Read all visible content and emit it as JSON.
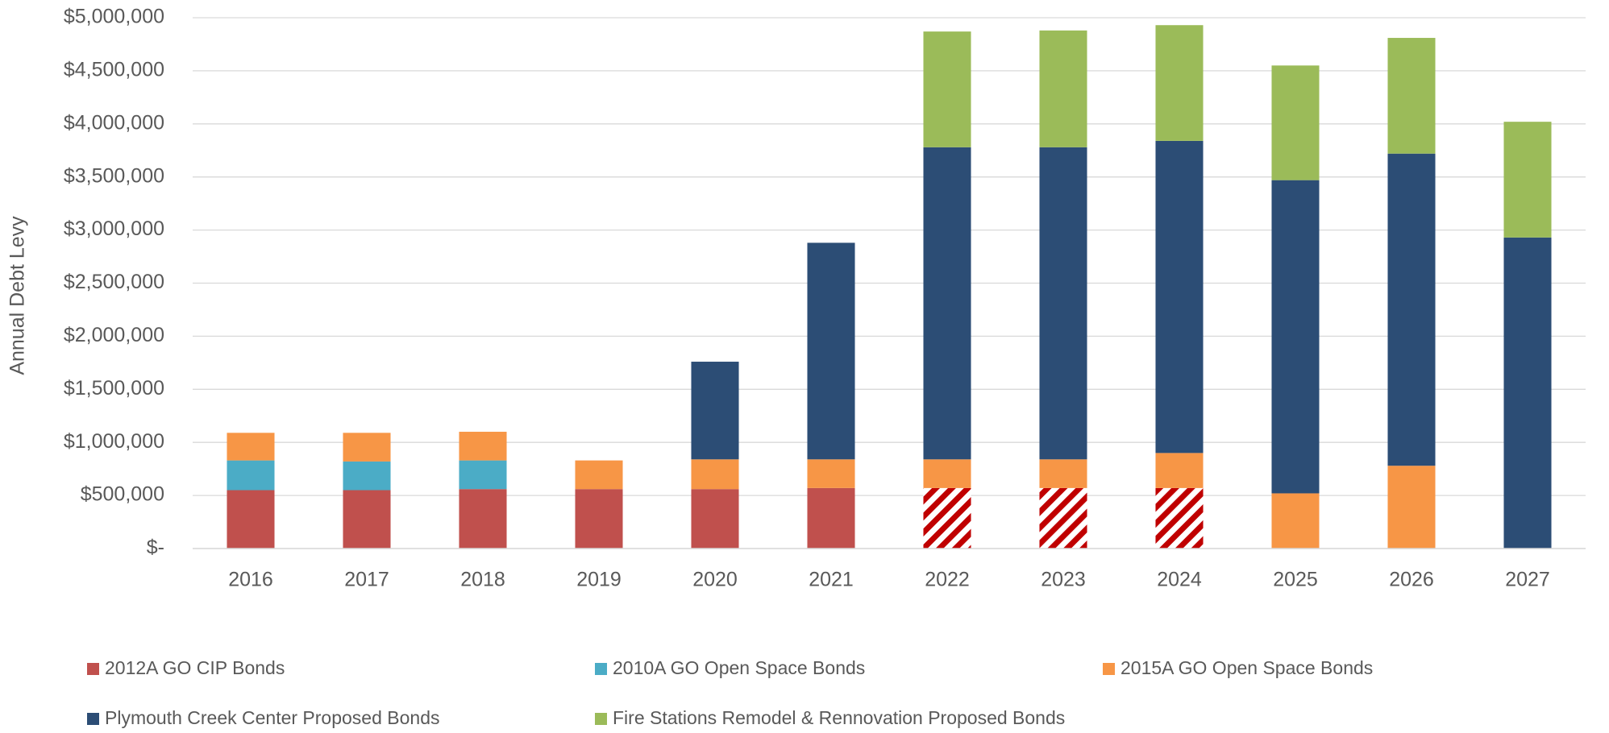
{
  "chart_data": {
    "type": "stacked_bar",
    "y_axis_label": "Annual Debt Levy",
    "categories": [
      "2016",
      "2017",
      "2018",
      "2019",
      "2020",
      "2021",
      "2022",
      "2023",
      "2024",
      "2025",
      "2026",
      "2027"
    ],
    "series": [
      {
        "name": "2012A GO CIP Bonds",
        "color": "#c0504d",
        "values": [
          550000,
          550000,
          560000,
          560000,
          560000,
          570000,
          570000,
          570000,
          570000,
          null,
          null,
          null
        ],
        "hatched": [
          false,
          false,
          false,
          false,
          false,
          false,
          true,
          true,
          true,
          false,
          false,
          false
        ]
      },
      {
        "name": "2010A GO Open Space Bonds",
        "color": "#4bacc6",
        "values": [
          280000,
          270000,
          270000,
          null,
          null,
          null,
          null,
          null,
          null,
          null,
          null,
          null
        ]
      },
      {
        "name": "2015A GO Open Space Bonds",
        "color": "#f79646",
        "values": [
          260000,
          270000,
          270000,
          270000,
          280000,
          270000,
          270000,
          270000,
          330000,
          520000,
          780000,
          null
        ]
      },
      {
        "name": "Plymouth Creek Center Proposed Bonds",
        "color": "#2c4d75",
        "values": [
          null,
          null,
          null,
          null,
          920000,
          2040000,
          2940000,
          2940000,
          2940000,
          2950000,
          2940000,
          2930000
        ]
      },
      {
        "name": "Fire Stations Remodel & Rennovation Proposed Bonds",
        "color": "#9bbb59",
        "values": [
          null,
          null,
          null,
          null,
          null,
          null,
          1090000,
          1100000,
          1090000,
          1080000,
          1090000,
          1090000
        ]
      }
    ],
    "ylim": [
      0,
      5000000
    ],
    "yticks": [
      {
        "value": 0,
        "label": "$-"
      },
      {
        "value": 500000,
        "label": "$500,000"
      },
      {
        "value": 1000000,
        "label": "$1,000,000"
      },
      {
        "value": 1500000,
        "label": "$1,500,000"
      },
      {
        "value": 2000000,
        "label": "$2,000,000"
      },
      {
        "value": 2500000,
        "label": "$2,500,000"
      },
      {
        "value": 3000000,
        "label": "$3,000,000"
      },
      {
        "value": 3500000,
        "label": "$3,500,000"
      },
      {
        "value": 4000000,
        "label": "$4,000,000"
      },
      {
        "value": 4500000,
        "label": "$4,500,000"
      },
      {
        "value": 5000000,
        "label": "$5,000,000"
      }
    ],
    "grid": true
  }
}
